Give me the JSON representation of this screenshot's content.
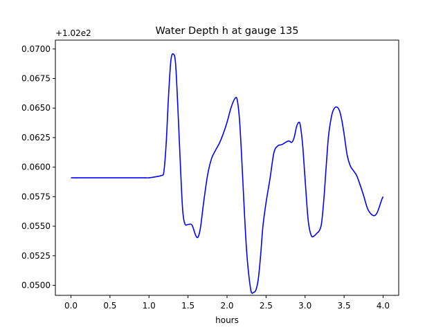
{
  "chart_data": {
    "type": "line",
    "title": "Water Depth h at gauge 135",
    "xlabel": "hours",
    "ylabel": "",
    "y_offset_label": "+1.02e2",
    "xlim": [
      -0.2,
      4.2
    ],
    "ylim": [
      0.04915,
      0.07075
    ],
    "x_ticks": [
      0.0,
      0.5,
      1.0,
      1.5,
      2.0,
      2.5,
      3.0,
      3.5,
      4.0
    ],
    "x_tick_labels": [
      "0.0",
      "0.5",
      "1.0",
      "1.5",
      "2.0",
      "2.5",
      "3.0",
      "3.5",
      "4.0"
    ],
    "y_ticks": [
      0.05,
      0.0525,
      0.055,
      0.0575,
      0.06,
      0.0625,
      0.065,
      0.0675,
      0.07
    ],
    "y_tick_labels": [
      "0.0500",
      "0.0525",
      "0.0550",
      "0.0575",
      "0.0600",
      "0.0625",
      "0.0650",
      "0.0675",
      "0.0700"
    ],
    "grid": false,
    "line_color": "#0000ff",
    "series": [
      {
        "x": [
          0.0,
          0.3,
          0.6,
          0.9,
          1.0,
          1.1,
          1.16,
          1.19,
          1.22,
          1.25,
          1.28,
          1.31,
          1.34,
          1.37,
          1.4,
          1.43,
          1.46,
          1.5,
          1.55,
          1.6,
          1.63,
          1.66,
          1.7,
          1.75,
          1.8,
          1.85,
          1.9,
          1.95,
          2.0,
          2.05,
          2.1,
          2.13,
          2.16,
          2.19,
          2.22,
          2.25,
          2.28,
          2.31,
          2.34,
          2.37,
          2.4,
          2.43,
          2.46,
          2.5,
          2.55,
          2.6,
          2.65,
          2.7,
          2.75,
          2.78,
          2.8,
          2.83,
          2.86,
          2.89,
          2.92,
          2.94,
          2.97,
          3.0,
          3.04,
          3.08,
          3.12,
          3.15,
          3.18,
          3.21,
          3.24,
          3.27,
          3.3,
          3.33,
          3.36,
          3.4,
          3.44,
          3.47,
          3.5,
          3.54,
          3.58,
          3.62,
          3.66,
          3.7,
          3.75,
          3.8,
          3.85,
          3.89,
          3.92,
          3.95,
          3.98,
          4.0
        ],
        "y": [
          0.0591,
          0.0591,
          0.0591,
          0.0591,
          0.0591,
          0.0592,
          0.0593,
          0.0596,
          0.062,
          0.066,
          0.069,
          0.06958,
          0.0688,
          0.065,
          0.0605,
          0.0565,
          0.0552,
          0.05515,
          0.0551,
          0.0542,
          0.0541,
          0.0549,
          0.057,
          0.0593,
          0.0607,
          0.0614,
          0.062,
          0.0628,
          0.0638,
          0.065,
          0.0658,
          0.0657,
          0.064,
          0.0605,
          0.0565,
          0.053,
          0.0508,
          0.04945,
          0.0494,
          0.0496,
          0.0505,
          0.0525,
          0.055,
          0.057,
          0.059,
          0.0612,
          0.0618,
          0.0619,
          0.0621,
          0.0622,
          0.0622,
          0.0621,
          0.0625,
          0.0634,
          0.0638,
          0.0635,
          0.0618,
          0.059,
          0.0555,
          0.0542,
          0.0542,
          0.0544,
          0.0546,
          0.0552,
          0.0572,
          0.06,
          0.0626,
          0.064,
          0.0648,
          0.0651,
          0.0648,
          0.064,
          0.0628,
          0.061,
          0.0601,
          0.0597,
          0.0593,
          0.0586,
          0.0576,
          0.0565,
          0.056,
          0.0559,
          0.0561,
          0.0566,
          0.0572,
          0.0575
        ]
      }
    ]
  }
}
